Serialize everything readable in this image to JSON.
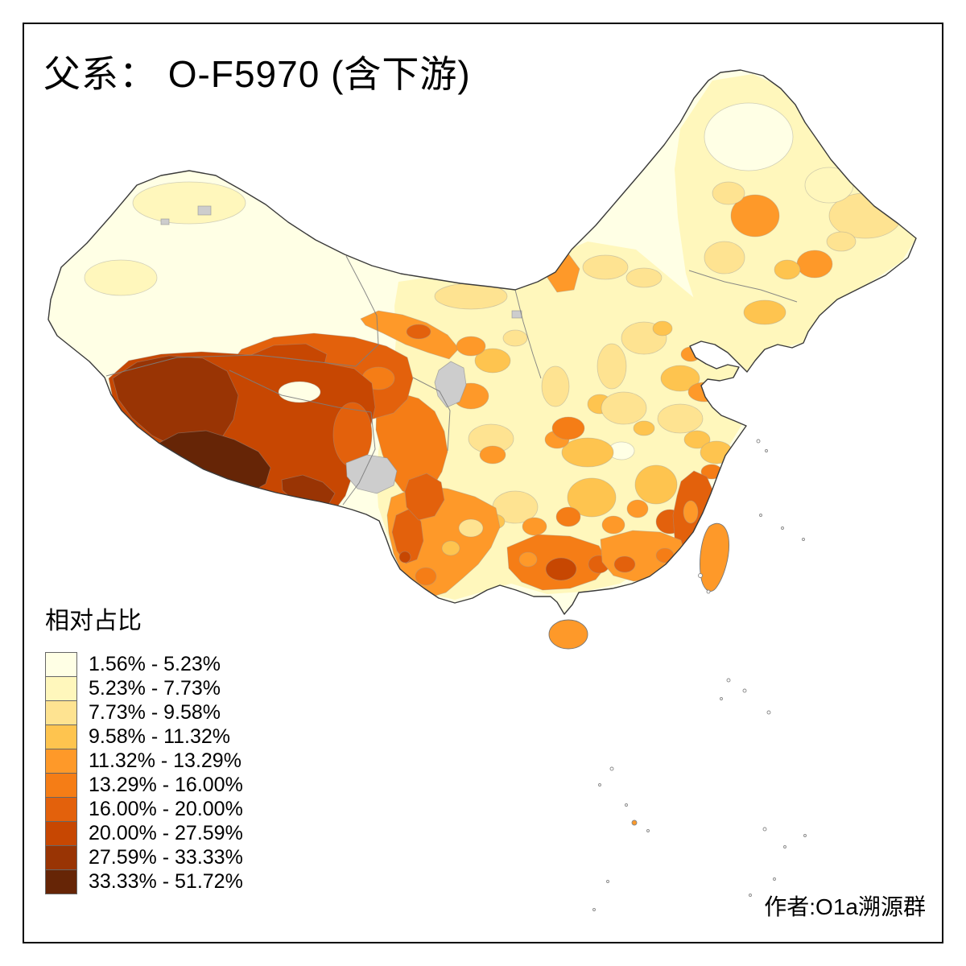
{
  "page": {
    "background": "#FFFFFF",
    "frame_border_color": "#000000"
  },
  "title": "父系： O-F5970 (含下游)",
  "attribution": "作者:O1a溯源群",
  "legend": {
    "title": "相对占比",
    "no_data_color": "#CDCDCD",
    "classes": [
      {
        "label": "1.56% - 5.23%",
        "color": "#FFFFE5"
      },
      {
        "label": "5.23% - 7.73%",
        "color": "#FFF7BC"
      },
      {
        "label": "7.73% - 9.58%",
        "color": "#FEE391"
      },
      {
        "label": "9.58% - 11.32%",
        "color": "#FEC44F"
      },
      {
        "label": "11.32% - 13.29%",
        "color": "#FE9929"
      },
      {
        "label": "13.29% - 16.00%",
        "color": "#F57D16"
      },
      {
        "label": "16.00% - 20.00%",
        "color": "#E3610C"
      },
      {
        "label": "20.00% - 27.59%",
        "color": "#C74702"
      },
      {
        "label": "27.59% - 33.33%",
        "color": "#993404"
      },
      {
        "label": "33.33% - 51.72%",
        "color": "#662506"
      }
    ]
  },
  "chart_data": {
    "type": "heatmap",
    "variant": "choropleth map of China, prefecture-level divisions",
    "title": "父系： O-F5970 (含下游)",
    "legend_title": "相对占比",
    "unit": "%",
    "value_range": [
      1.56,
      51.72
    ],
    "bins": [
      {
        "range": "1.56% - 5.23%",
        "min": 1.56,
        "max": 5.23,
        "color": "#FFFFE5"
      },
      {
        "range": "5.23% - 7.73%",
        "min": 5.23,
        "max": 7.73,
        "color": "#FFF7BC"
      },
      {
        "range": "7.73% - 9.58%",
        "min": 7.73,
        "max": 9.58,
        "color": "#FEE391"
      },
      {
        "range": "9.58% - 11.32%",
        "min": 9.58,
        "max": 11.32,
        "color": "#FEC44F"
      },
      {
        "range": "11.32% - 13.29%",
        "min": 11.32,
        "max": 13.29,
        "color": "#FE9929"
      },
      {
        "range": "13.29% - 16.00%",
        "min": 13.29,
        "max": 16.0,
        "color": "#F57D16"
      },
      {
        "range": "16.00% - 20.00%",
        "min": 16.0,
        "max": 20.0,
        "color": "#E3610C"
      },
      {
        "range": "20.00% - 27.59%",
        "min": 20.0,
        "max": 27.59,
        "color": "#C74702"
      },
      {
        "range": "27.59% - 33.33%",
        "min": 27.59,
        "max": 33.33,
        "color": "#993404"
      },
      {
        "range": "33.33% - 51.72%",
        "min": 33.33,
        "max": 51.72,
        "color": "#662506"
      }
    ],
    "no_data": {
      "color": "#CDCDCD",
      "meaning": "gray areas = no data"
    },
    "spatial_pattern": [
      {
        "area": "新疆 Xinjiang (northwest)",
        "bin": "1.56% - 5.23%"
      },
      {
        "area": "西藏西部 West/Central Tibet",
        "bin": "27.59% - 33.33%"
      },
      {
        "area": "西藏南部 South-central Tibet (darkest)",
        "bin": "33.33% - 51.72%"
      },
      {
        "area": "青海及藏东 Qinghai & East Tibet",
        "bin": "16.00% - 27.59%"
      },
      {
        "area": "河西走廊 Hexi corridor (Gansu)",
        "bin": "11.32% - 16.00%"
      },
      {
        "area": "川西/云南 West Sichuan & Yunnan",
        "bin": "13.29% - 20.00%"
      },
      {
        "area": "广西 Guangxi",
        "bin": "16.00% - 27.59%"
      },
      {
        "area": "广东/福建沿海 Guangdong & Fujian coast",
        "bin": "13.29% - 20.00%"
      },
      {
        "area": "华中 Central China",
        "bin": "7.73% - 13.29%"
      },
      {
        "area": "华北/内蒙古 North China & Inner Mongolia",
        "bin": "1.56% - 9.58%"
      },
      {
        "area": "东北 Northeast China",
        "bin": "5.23% - 13.29%"
      },
      {
        "area": "台湾 Taiwan",
        "bin": "11.32% - 13.29%"
      },
      {
        "area": "海南 Hainan",
        "bin": "11.32% - 13.29%"
      }
    ]
  }
}
